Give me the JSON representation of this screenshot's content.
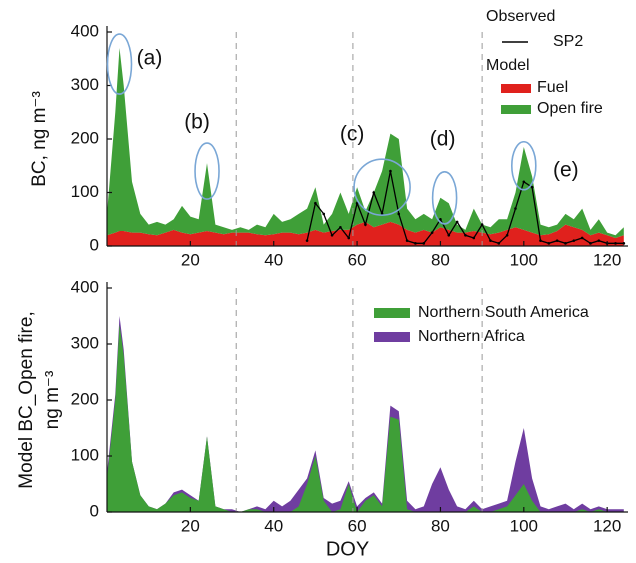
{
  "chart_data": [
    {
      "type": "area",
      "stacked": true,
      "ylabel": [
        "BC, ng m⁻³"
      ],
      "xlim": [
        0,
        125
      ],
      "ylim": [
        0,
        400
      ],
      "xticks": [
        20,
        40,
        60,
        80,
        100,
        120
      ],
      "yticks": [
        0,
        100,
        200,
        300,
        400
      ],
      "vlines": [
        31,
        59,
        90
      ],
      "legend_groups": [
        "Observed",
        "Model"
      ],
      "x": [
        0,
        2,
        3,
        4,
        6,
        8,
        10,
        12,
        14,
        16,
        18,
        20,
        22,
        24,
        26,
        28,
        30,
        32,
        34,
        36,
        38,
        40,
        42,
        44,
        46,
        48,
        50,
        52,
        54,
        56,
        58,
        60,
        62,
        64,
        66,
        68,
        70,
        72,
        74,
        76,
        78,
        80,
        82,
        84,
        86,
        88,
        90,
        92,
        94,
        96,
        98,
        100,
        102,
        104,
        106,
        108,
        110,
        112,
        114,
        116,
        118,
        120,
        122,
        124
      ],
      "series": [
        {
          "name": "Fuel",
          "color": "#e0211d",
          "values": [
            20,
            25,
            28,
            28,
            25,
            25,
            22,
            20,
            25,
            30,
            25,
            22,
            25,
            28,
            25,
            22,
            25,
            25,
            25,
            22,
            20,
            22,
            25,
            25,
            22,
            25,
            30,
            25,
            28,
            30,
            30,
            40,
            45,
            35,
            40,
            45,
            40,
            30,
            25,
            30,
            25,
            35,
            30,
            25,
            25,
            28,
            25,
            22,
            25,
            30,
            35,
            30,
            25,
            20,
            22,
            28,
            40,
            35,
            30,
            20,
            25,
            20,
            15,
            20
          ]
        },
        {
          "name": "Open fire",
          "color": "#3f9f38",
          "values": [
            40,
            225,
            342,
            272,
            95,
            35,
            18,
            25,
            15,
            20,
            50,
            33,
            25,
            127,
            15,
            13,
            5,
            10,
            5,
            18,
            15,
            38,
            20,
            25,
            38,
            45,
            80,
            15,
            32,
            70,
            30,
            70,
            20,
            65,
            100,
            165,
            160,
            40,
            25,
            30,
            25,
            55,
            50,
            15,
            5,
            42,
            15,
            13,
            25,
            20,
            65,
            155,
            105,
            20,
            13,
            12,
            20,
            15,
            40,
            10,
            25,
            5,
            5,
            15
          ]
        }
      ],
      "observed": {
        "name": "SP2",
        "color": "#000000",
        "x": [
          48,
          50,
          52,
          54,
          56,
          58,
          60,
          62,
          64,
          66,
          68,
          70,
          72,
          74,
          76,
          78,
          80,
          82,
          84,
          86,
          88,
          90,
          92,
          94,
          96,
          98,
          100,
          102,
          104,
          106,
          108,
          110,
          112,
          114,
          116,
          118,
          120,
          122,
          124
        ],
        "values": [
          10,
          80,
          60,
          20,
          35,
          15,
          80,
          40,
          100,
          60,
          140,
          60,
          10,
          5,
          5,
          25,
          50,
          20,
          45,
          20,
          15,
          40,
          10,
          5,
          20,
          70,
          120,
          110,
          10,
          5,
          10,
          5,
          10,
          15,
          5,
          10,
          5,
          5,
          5
        ]
      },
      "annotations": [
        {
          "text": "(a)",
          "x": 3,
          "y": 340
        },
        {
          "text": "(b)",
          "x": 24,
          "y": 140
        },
        {
          "text": "(c)",
          "x": 66,
          "y": 110
        },
        {
          "text": "(d)",
          "x": 81,
          "y": 90
        },
        {
          "text": "(e)",
          "x": 100,
          "y": 150
        }
      ]
    },
    {
      "type": "area",
      "stacked": false,
      "ylabel": [
        "Model BC_Open fire,",
        "ng m⁻³"
      ],
      "xlabel": "DOY",
      "xlim": [
        0,
        125
      ],
      "ylim": [
        0,
        400
      ],
      "xticks": [
        20,
        40,
        60,
        80,
        100,
        120
      ],
      "yticks": [
        0,
        100,
        200,
        300,
        400
      ],
      "vlines": [
        31,
        59,
        90
      ],
      "x": [
        0,
        2,
        3,
        4,
        6,
        8,
        10,
        12,
        14,
        16,
        18,
        20,
        22,
        24,
        26,
        28,
        30,
        32,
        34,
        36,
        38,
        40,
        42,
        44,
        46,
        48,
        50,
        52,
        54,
        56,
        58,
        60,
        62,
        64,
        66,
        68,
        70,
        72,
        74,
        76,
        78,
        80,
        82,
        84,
        86,
        88,
        90,
        92,
        94,
        96,
        98,
        100,
        102,
        104,
        106,
        108,
        110,
        112,
        114,
        116,
        118,
        120,
        122,
        124
      ],
      "series": [
        {
          "name": "Northern Africa",
          "color": "#6f3da0",
          "values": [
            70,
            210,
            350,
            290,
            90,
            30,
            10,
            5,
            15,
            35,
            40,
            30,
            20,
            135,
            10,
            5,
            5,
            0,
            5,
            10,
            5,
            20,
            10,
            20,
            40,
            60,
            110,
            25,
            15,
            20,
            55,
            10,
            25,
            35,
            15,
            190,
            180,
            20,
            5,
            10,
            50,
            80,
            40,
            10,
            5,
            20,
            5,
            10,
            15,
            20,
            90,
            150,
            60,
            10,
            5,
            10,
            15,
            5,
            15,
            5,
            10,
            5,
            5,
            5
          ]
        },
        {
          "name": "Northern South America",
          "color": "#3f9f38",
          "values": [
            60,
            200,
            335,
            280,
            90,
            30,
            10,
            5,
            15,
            30,
            35,
            25,
            20,
            135,
            10,
            5,
            0,
            0,
            5,
            5,
            0,
            0,
            0,
            0,
            10,
            50,
            100,
            20,
            0,
            5,
            50,
            0,
            20,
            30,
            10,
            170,
            165,
            5,
            0,
            0,
            0,
            0,
            0,
            0,
            0,
            10,
            0,
            0,
            5,
            10,
            30,
            50,
            20,
            0,
            0,
            0,
            0,
            0,
            5,
            0,
            5,
            0,
            0,
            0
          ]
        }
      ]
    }
  ]
}
